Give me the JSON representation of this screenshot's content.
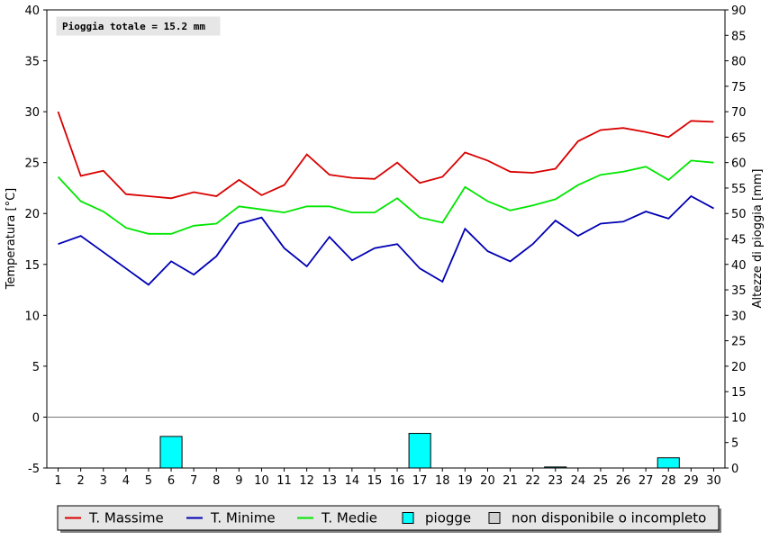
{
  "chart_data": {
    "type": "line",
    "annotation": "Pioggia totale = 15.2 mm",
    "x": [
      1,
      2,
      3,
      4,
      5,
      6,
      7,
      8,
      9,
      10,
      11,
      12,
      13,
      14,
      15,
      16,
      17,
      18,
      19,
      20,
      21,
      22,
      23,
      24,
      25,
      26,
      27,
      28,
      29,
      30
    ],
    "ylabel_left": "Temperatura [°C]",
    "ylabel_right": "Altezze di pioggia [mm]",
    "ylim_left": [
      -5,
      40
    ],
    "ylim_right": [
      0,
      90
    ],
    "yticks_left": [
      -5,
      0,
      5,
      10,
      15,
      20,
      25,
      30,
      35,
      40
    ],
    "yticks_right": [
      0,
      5,
      10,
      15,
      20,
      25,
      30,
      35,
      40,
      45,
      50,
      55,
      60,
      65,
      70,
      75,
      80,
      85,
      90
    ],
    "series": [
      {
        "name": "T. Massime",
        "color": "#d90000",
        "type": "line",
        "axis": "left",
        "values": [
          30.0,
          23.7,
          24.2,
          21.9,
          21.7,
          21.5,
          22.1,
          21.7,
          23.3,
          21.8,
          22.8,
          25.8,
          23.8,
          23.5,
          23.4,
          25.0,
          23.0,
          23.6,
          26.0,
          25.2,
          24.1,
          24.0,
          24.4,
          27.1,
          28.2,
          28.4,
          28.0,
          27.5,
          29.1,
          29.0
        ]
      },
      {
        "name": "T. Minime",
        "color": "#0000b4",
        "type": "line",
        "axis": "left",
        "values": [
          17.0,
          17.8,
          16.2,
          14.6,
          13.0,
          15.3,
          14.0,
          15.8,
          19.0,
          19.6,
          16.6,
          14.8,
          17.7,
          15.4,
          16.6,
          17.0,
          14.6,
          13.3,
          18.5,
          16.3,
          15.3,
          17.0,
          19.3,
          17.8,
          19.0,
          19.2,
          20.2,
          19.5,
          21.7,
          20.5
        ]
      },
      {
        "name": "T. Medie",
        "color": "#00e600",
        "type": "line",
        "axis": "left",
        "values": [
          23.6,
          21.2,
          20.2,
          18.6,
          18.0,
          18.0,
          18.8,
          19.0,
          20.7,
          20.4,
          20.1,
          20.7,
          20.7,
          20.1,
          20.1,
          21.5,
          19.6,
          19.1,
          22.6,
          21.2,
          20.3,
          20.8,
          21.4,
          22.8,
          23.8,
          24.1,
          24.6,
          23.3,
          25.2,
          25.0
        ]
      },
      {
        "name": "piogge",
        "color": "#00ffff",
        "type": "bar",
        "axis": "right",
        "values": [
          0,
          0,
          0,
          0,
          0,
          6.2,
          0,
          0,
          0,
          0,
          0,
          0,
          0,
          0,
          0,
          0,
          6.8,
          0,
          0,
          0,
          0,
          0,
          0.2,
          0,
          0,
          0,
          0,
          2.0,
          0,
          0
        ]
      }
    ],
    "legend": {
      "position": "bottom",
      "items": [
        {
          "label": "T. Massime",
          "color": "#d90000",
          "kind": "line"
        },
        {
          "label": "T. Minime",
          "color": "#0000b4",
          "kind": "line"
        },
        {
          "label": "T. Medie",
          "color": "#00e600",
          "kind": "line"
        },
        {
          "label": "piogge",
          "color": "#00ffff",
          "kind": "box"
        },
        {
          "label": "non disponibile o incompleto",
          "color": "#d0d0d0",
          "kind": "box"
        }
      ]
    },
    "grid": false
  }
}
